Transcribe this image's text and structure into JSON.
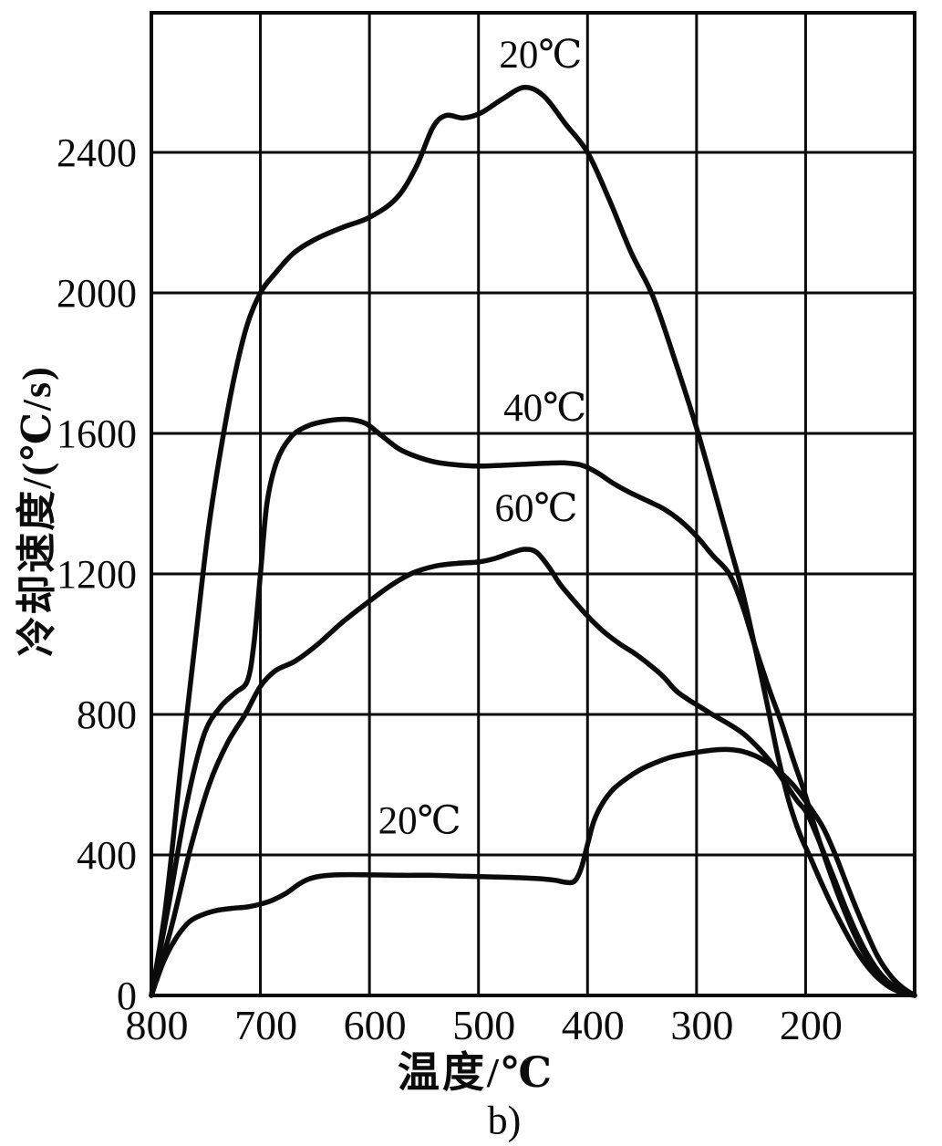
{
  "figure": {
    "caption": "b)",
    "x_axis_title": "温度/℃",
    "y_axis_title": "冷却速度/(℃/s)"
  },
  "chart_data": {
    "type": "line",
    "title": "",
    "xlabel": "温度/℃",
    "ylabel": "冷却速度/(℃/s)",
    "caption": "b)",
    "x_ticks": [
      800,
      700,
      600,
      500,
      400,
      300,
      200
    ],
    "y_ticks": [
      0,
      400,
      800,
      1200,
      1600,
      2000,
      2400
    ],
    "x_axis_reversed": true,
    "x_range_displayed": [
      800,
      100
    ],
    "y_range_displayed": [
      0,
      2800
    ],
    "grid": true,
    "ink_color": "#0b0b0b",
    "series": [
      {
        "name": "20C-top",
        "label": "20℃",
        "label_at": {
          "t": 443,
          "v": 2680
        },
        "points": [
          [
            800,
            0
          ],
          [
            787,
            250
          ],
          [
            773,
            650
          ],
          [
            760,
            1000
          ],
          [
            748,
            1320
          ],
          [
            736,
            1560
          ],
          [
            724,
            1760
          ],
          [
            712,
            1910
          ],
          [
            700,
            2000
          ],
          [
            688,
            2050
          ],
          [
            670,
            2112
          ],
          [
            650,
            2152
          ],
          [
            625,
            2186
          ],
          [
            600,
            2215
          ],
          [
            575,
            2270
          ],
          [
            557,
            2360
          ],
          [
            542,
            2470
          ],
          [
            530,
            2505
          ],
          [
            514,
            2498
          ],
          [
            498,
            2512
          ],
          [
            478,
            2552
          ],
          [
            458,
            2585
          ],
          [
            440,
            2560
          ],
          [
            420,
            2480
          ],
          [
            400,
            2400
          ],
          [
            380,
            2265
          ],
          [
            360,
            2115
          ],
          [
            340,
            1990
          ],
          [
            320,
            1810
          ],
          [
            300,
            1615
          ],
          [
            283,
            1430
          ],
          [
            270,
            1285
          ],
          [
            258,
            1150
          ],
          [
            247,
            1000
          ],
          [
            236,
            840
          ],
          [
            226,
            690
          ],
          [
            216,
            560
          ],
          [
            206,
            465
          ],
          [
            196,
            395
          ],
          [
            184,
            310
          ],
          [
            170,
            220
          ],
          [
            155,
            135
          ],
          [
            140,
            70
          ],
          [
            125,
            28
          ],
          [
            112,
            8
          ],
          [
            100,
            0
          ]
        ]
      },
      {
        "name": "40C",
        "label": "40℃",
        "label_at": {
          "t": 439,
          "v": 1675
        },
        "points": [
          [
            800,
            0
          ],
          [
            784,
            260
          ],
          [
            768,
            540
          ],
          [
            752,
            740
          ],
          [
            737,
            820
          ],
          [
            723,
            862
          ],
          [
            712,
            895
          ],
          [
            706,
            1000
          ],
          [
            700,
            1200
          ],
          [
            694,
            1400
          ],
          [
            685,
            1520
          ],
          [
            672,
            1590
          ],
          [
            656,
            1622
          ],
          [
            638,
            1636
          ],
          [
            620,
            1640
          ],
          [
            604,
            1629
          ],
          [
            589,
            1594
          ],
          [
            573,
            1556
          ],
          [
            557,
            1534
          ],
          [
            539,
            1518
          ],
          [
            519,
            1510
          ],
          [
            499,
            1507
          ],
          [
            479,
            1509
          ],
          [
            459,
            1512
          ],
          [
            439,
            1515
          ],
          [
            421,
            1516
          ],
          [
            406,
            1510
          ],
          [
            392,
            1490
          ],
          [
            375,
            1455
          ],
          [
            360,
            1430
          ],
          [
            345,
            1408
          ],
          [
            330,
            1385
          ],
          [
            315,
            1352
          ],
          [
            300,
            1307
          ],
          [
            285,
            1252
          ],
          [
            270,
            1200
          ],
          [
            258,
            1110
          ],
          [
            246,
            990
          ],
          [
            233,
            868
          ],
          [
            222,
            775
          ],
          [
            211,
            668
          ],
          [
            201,
            578
          ],
          [
            190,
            465
          ],
          [
            177,
            345
          ],
          [
            163,
            230
          ],
          [
            149,
            135
          ],
          [
            135,
            70
          ],
          [
            121,
            28
          ],
          [
            110,
            10
          ],
          [
            100,
            0
          ]
        ]
      },
      {
        "name": "60C",
        "label": "60℃",
        "label_at": {
          "t": 447,
          "v": 1390
        },
        "points": [
          [
            800,
            0
          ],
          [
            782,
            190
          ],
          [
            764,
            420
          ],
          [
            747,
            600
          ],
          [
            730,
            720
          ],
          [
            714,
            800
          ],
          [
            700,
            880
          ],
          [
            686,
            925
          ],
          [
            668,
            952
          ],
          [
            648,
            998
          ],
          [
            625,
            1062
          ],
          [
            602,
            1118
          ],
          [
            580,
            1168
          ],
          [
            560,
            1203
          ],
          [
            540,
            1222
          ],
          [
            520,
            1230
          ],
          [
            500,
            1234
          ],
          [
            485,
            1244
          ],
          [
            470,
            1260
          ],
          [
            458,
            1270
          ],
          [
            447,
            1262
          ],
          [
            436,
            1222
          ],
          [
            425,
            1170
          ],
          [
            412,
            1122
          ],
          [
            400,
            1080
          ],
          [
            386,
            1038
          ],
          [
            371,
            1002
          ],
          [
            356,
            972
          ],
          [
            341,
            936
          ],
          [
            330,
            906
          ],
          [
            319,
            868
          ],
          [
            308,
            843
          ],
          [
            297,
            822
          ],
          [
            284,
            797
          ],
          [
            270,
            772
          ],
          [
            257,
            745
          ],
          [
            245,
            710
          ],
          [
            233,
            668
          ],
          [
            220,
            610
          ],
          [
            208,
            555
          ],
          [
            199,
            520
          ],
          [
            188,
            442
          ],
          [
            175,
            342
          ],
          [
            161,
            232
          ],
          [
            147,
            138
          ],
          [
            133,
            68
          ],
          [
            120,
            28
          ],
          [
            110,
            10
          ],
          [
            100,
            0
          ]
        ]
      },
      {
        "name": "20C-bottom",
        "label": "20℃",
        "label_at": {
          "t": 554,
          "v": 500
        },
        "points": [
          [
            800,
            0
          ],
          [
            789,
            95
          ],
          [
            777,
            165
          ],
          [
            765,
            210
          ],
          [
            753,
            230
          ],
          [
            740,
            242
          ],
          [
            726,
            248
          ],
          [
            712,
            252
          ],
          [
            700,
            260
          ],
          [
            689,
            271
          ],
          [
            677,
            290
          ],
          [
            665,
            316
          ],
          [
            656,
            331
          ],
          [
            646,
            339
          ],
          [
            632,
            343
          ],
          [
            615,
            344
          ],
          [
            595,
            343
          ],
          [
            570,
            342
          ],
          [
            545,
            342
          ],
          [
            520,
            340
          ],
          [
            495,
            338
          ],
          [
            470,
            336
          ],
          [
            448,
            333
          ],
          [
            430,
            328
          ],
          [
            420,
            322
          ],
          [
            412,
            325
          ],
          [
            406,
            360
          ],
          [
            400,
            430
          ],
          [
            394,
            498
          ],
          [
            386,
            548
          ],
          [
            376,
            588
          ],
          [
            364,
            618
          ],
          [
            352,
            642
          ],
          [
            338,
            662
          ],
          [
            324,
            678
          ],
          [
            310,
            687
          ],
          [
            296,
            694
          ],
          [
            283,
            699
          ],
          [
            270,
            700
          ],
          [
            258,
            695
          ],
          [
            246,
            682
          ],
          [
            234,
            661
          ],
          [
            223,
            635
          ],
          [
            212,
            601
          ],
          [
            202,
            562
          ],
          [
            192,
            518
          ],
          [
            183,
            472
          ],
          [
            172,
            395
          ],
          [
            160,
            298
          ],
          [
            147,
            200
          ],
          [
            134,
            112
          ],
          [
            121,
            52
          ],
          [
            110,
            20
          ],
          [
            100,
            0
          ]
        ]
      }
    ]
  }
}
